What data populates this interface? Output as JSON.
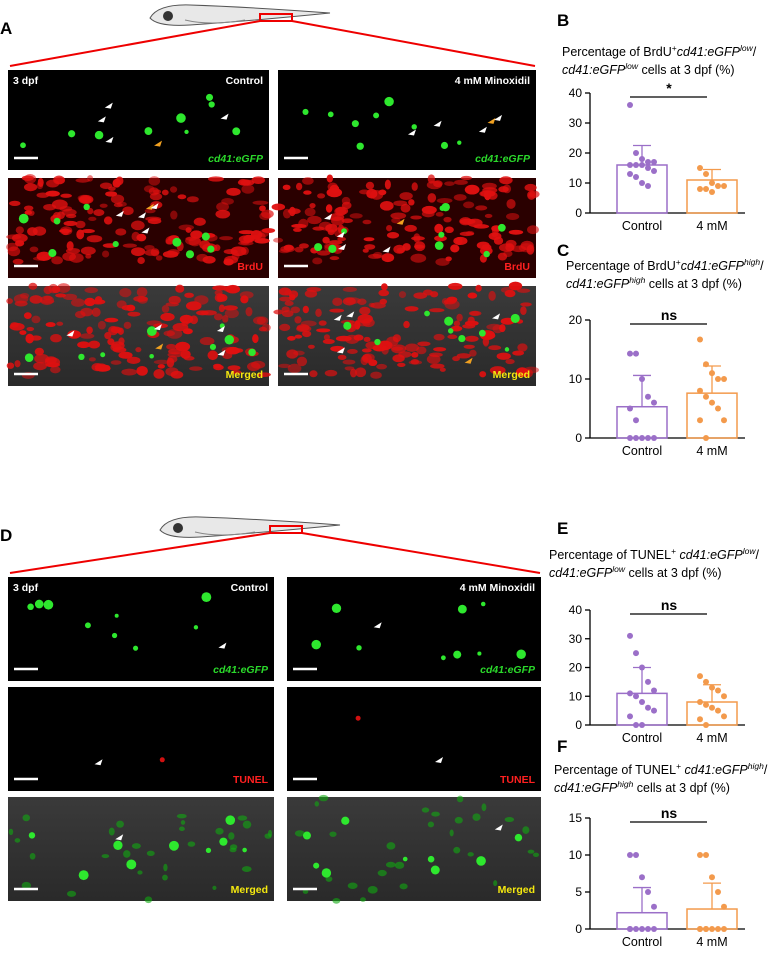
{
  "figure_a": {
    "letter": "A",
    "rows": [
      {
        "color": "#2bd92b",
        "italic": true,
        "left": {
          "tl": "3 dpf",
          "tr": "Control",
          "br": "cd41:eGFP"
        },
        "right": {
          "tr": "4 mM Minoxidil",
          "br": "cd41:eGFP"
        }
      },
      {
        "color": "#ff2020",
        "left": {
          "br": "BrdU"
        },
        "right": {
          "br": "BrdU"
        }
      },
      {
        "color": "#f5e90f",
        "left": {
          "br": "Merged"
        },
        "right": {
          "br": "Merged"
        }
      }
    ]
  },
  "figure_d": {
    "letter": "D",
    "rows": [
      {
        "color": "#2bd92b",
        "italic": true,
        "left": {
          "tl": "3 dpf",
          "tr": "Control",
          "br": "cd41:eGFP"
        },
        "right": {
          "tr": "4 mM Minoxidil",
          "br": "cd41:eGFP"
        }
      },
      {
        "color": "#ff2020",
        "left": {
          "br": "TUNEL"
        },
        "right": {
          "br": "TUNEL"
        }
      },
      {
        "color": "#f5e90f",
        "left": {
          "br": "Merged"
        },
        "right": {
          "br": "Merged"
        }
      }
    ]
  },
  "chart_data": [
    {
      "type": "bar",
      "panel": "B",
      "title": [
        [
          {
            "text": "Percentage of BrdU"
          },
          {
            "text": "+",
            "style": "sup"
          },
          {
            "text": "cd41:eGFP",
            "style": "i"
          },
          {
            "text": "low",
            "style": "isup"
          },
          {
            "text": "/"
          }
        ],
        [
          {
            "text": "cd41:eGFP",
            "style": "i"
          },
          {
            "text": "low",
            "style": "isup"
          },
          {
            "text": " cells at 3 dpf (%)"
          }
        ]
      ],
      "categories": [
        "Control",
        "4 mM"
      ],
      "colors": [
        "#9b6fc8",
        "#f39a4c"
      ],
      "values": [
        16,
        11
      ],
      "errors": [
        6.5,
        3.5
      ],
      "points": [
        [
          36,
          20,
          18,
          17,
          17,
          16,
          16,
          16,
          15,
          14,
          13,
          12,
          10,
          9
        ],
        [
          15,
          13,
          10,
          9,
          9,
          8,
          8,
          7
        ]
      ],
      "significance": "*",
      "ylim": [
        0,
        40
      ],
      "yticks": [
        0,
        10,
        20,
        30,
        40
      ]
    },
    {
      "type": "bar",
      "panel": "C",
      "title": [
        [
          {
            "text": "Percentage of BrdU"
          },
          {
            "text": "+",
            "style": "sup"
          },
          {
            "text": "cd41:eGFP",
            "style": "i"
          },
          {
            "text": "high",
            "style": "isup"
          },
          {
            "text": "/"
          }
        ],
        [
          {
            "text": "cd41:eGFP",
            "style": "i"
          },
          {
            "text": "high",
            "style": "isup"
          },
          {
            "text": " cells at 3 dpf (%)"
          }
        ]
      ],
      "categories": [
        "Control",
        "4 mM"
      ],
      "colors": [
        "#9b6fc8",
        "#f39a4c"
      ],
      "values": [
        5.3,
        7.6
      ],
      "errors": [
        5.3,
        4.6
      ],
      "points": [
        [
          14.3,
          14.3,
          10,
          7,
          6,
          5,
          3,
          0,
          0,
          0,
          0,
          0
        ],
        [
          16.7,
          12.5,
          11,
          10,
          10,
          8,
          7,
          6,
          5,
          3,
          3,
          0
        ]
      ],
      "significance": "ns",
      "ylim": [
        0,
        20
      ],
      "yticks": [
        0,
        10,
        20
      ]
    },
    {
      "type": "bar",
      "panel": "E",
      "title": [
        [
          {
            "text": "Percentage of TUNEL"
          },
          {
            "text": "+",
            "style": "sup"
          },
          {
            "text": " cd41:eGFP",
            "style": "i"
          },
          {
            "text": "low",
            "style": "isup"
          },
          {
            "text": "/"
          }
        ],
        [
          {
            "text": "cd41:eGFP",
            "style": "i"
          },
          {
            "text": "low",
            "style": "isup"
          },
          {
            "text": " cells at 3 dpf (%)"
          }
        ]
      ],
      "categories": [
        "Control",
        "4 mM"
      ],
      "colors": [
        "#9b6fc8",
        "#f39a4c"
      ],
      "values": [
        11,
        8
      ],
      "errors": [
        9,
        6
      ],
      "points": [
        [
          31,
          25,
          20,
          15,
          12,
          11,
          10,
          8,
          6,
          5,
          3,
          0,
          0
        ],
        [
          17,
          15,
          13,
          12,
          10,
          8,
          7,
          6,
          5,
          3,
          2,
          0
        ]
      ],
      "significance": "ns",
      "ylim": [
        0,
        40
      ],
      "yticks": [
        0,
        10,
        20,
        30,
        40
      ]
    },
    {
      "type": "bar",
      "panel": "F",
      "title": [
        [
          {
            "text": "Percentage of TUNEL"
          },
          {
            "text": "+",
            "style": "sup"
          },
          {
            "text": " cd41:eGFP",
            "style": "i"
          },
          {
            "text": "high",
            "style": "isup"
          },
          {
            "text": "/"
          }
        ],
        [
          {
            "text": "cd41:eGFP",
            "style": "i"
          },
          {
            "text": "high",
            "style": "isup"
          },
          {
            "text": " cells at 3 dpf (%)"
          }
        ]
      ],
      "categories": [
        "Control",
        "4 mM"
      ],
      "colors": [
        "#9b6fc8",
        "#f39a4c"
      ],
      "values": [
        2.2,
        2.7
      ],
      "errors": [
        3.4,
        3.5
      ],
      "points": [
        [
          10,
          10,
          7,
          5,
          3,
          0,
          0,
          0,
          0,
          0,
          0
        ],
        [
          10,
          10,
          7,
          5,
          3,
          0,
          0,
          0,
          0,
          0,
          0,
          0
        ]
      ],
      "significance": "ns",
      "ylim": [
        0,
        15
      ],
      "yticks": [
        0,
        5,
        10,
        15
      ]
    }
  ]
}
